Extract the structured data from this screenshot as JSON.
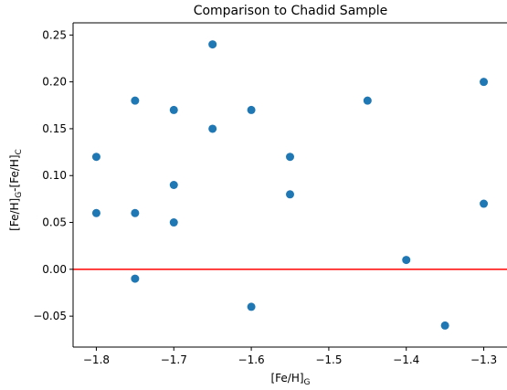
{
  "chart_data": {
    "type": "scatter",
    "title": "Comparison to Chadid Sample",
    "xlabel": {
      "main": "[Fe/H]",
      "sub": "G"
    },
    "ylabel": {
      "parts": [
        {
          "text": "[Fe/H]",
          "sub": false
        },
        {
          "text": "G",
          "sub": true
        },
        {
          "text": "-[Fe/H]",
          "sub": false
        },
        {
          "text": "C",
          "sub": true
        }
      ]
    },
    "xlim": [
      -1.83,
      -1.27
    ],
    "ylim": [
      -0.083,
      0.263
    ],
    "xticks": [
      {
        "value": -1.8,
        "label": "−1.8"
      },
      {
        "value": -1.7,
        "label": "−1.7"
      },
      {
        "value": -1.6,
        "label": "−1.6"
      },
      {
        "value": -1.5,
        "label": "−1.5"
      },
      {
        "value": -1.4,
        "label": "−1.4"
      },
      {
        "value": -1.3,
        "label": "−1.3"
      }
    ],
    "yticks": [
      {
        "value": -0.05,
        "label": "−0.05"
      },
      {
        "value": 0.0,
        "label": "0.00"
      },
      {
        "value": 0.05,
        "label": "0.05"
      },
      {
        "value": 0.1,
        "label": "0.10"
      },
      {
        "value": 0.15,
        "label": "0.15"
      },
      {
        "value": 0.2,
        "label": "0.20"
      },
      {
        "value": 0.25,
        "label": "0.25"
      }
    ],
    "grid": false,
    "series": [
      {
        "color": "#1f77b4",
        "x": [
          -1.8,
          -1.8,
          -1.75,
          -1.75,
          -1.75,
          -1.7,
          -1.7,
          -1.7,
          -1.65,
          -1.65,
          -1.6,
          -1.6,
          -1.55,
          -1.55,
          -1.45,
          -1.4,
          -1.35,
          -1.3,
          -1.3
        ],
        "y": [
          0.12,
          0.06,
          0.18,
          0.06,
          -0.01,
          0.17,
          0.09,
          0.05,
          0.24,
          0.15,
          0.17,
          -0.04,
          0.12,
          0.08,
          0.18,
          0.01,
          -0.06,
          0.2,
          0.07
        ]
      }
    ],
    "reference_line": {
      "y": 0.0,
      "color": "#ff0000"
    }
  }
}
